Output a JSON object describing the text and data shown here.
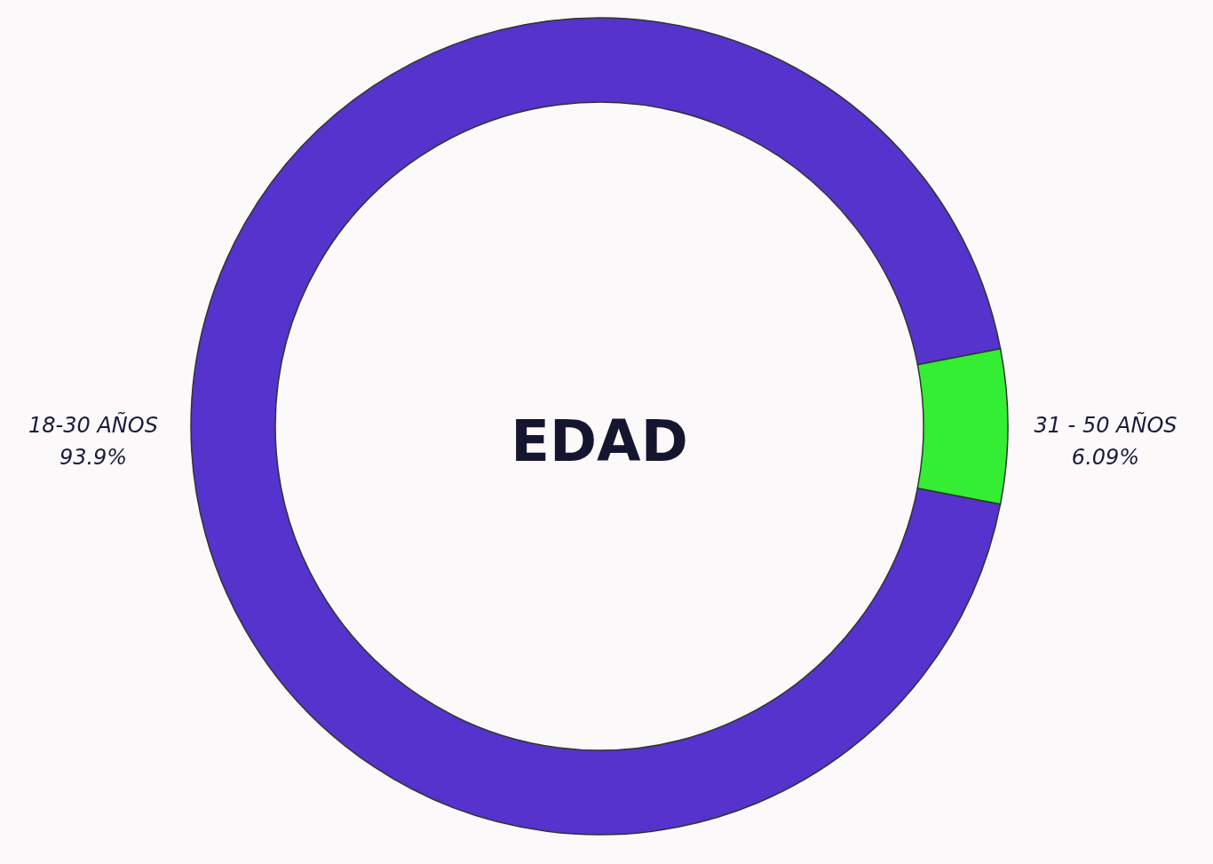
{
  "chart_data": {
    "type": "donut",
    "title": "EDAD",
    "categories": [
      "18-30 AÑOS",
      "31 - 50 AÑOS"
    ],
    "values": [
      93.9,
      6.09
    ],
    "value_labels": [
      "93.9%",
      "6.09%"
    ],
    "colors": [
      "#5533cc",
      "#33ee33"
    ],
    "legend": false
  }
}
